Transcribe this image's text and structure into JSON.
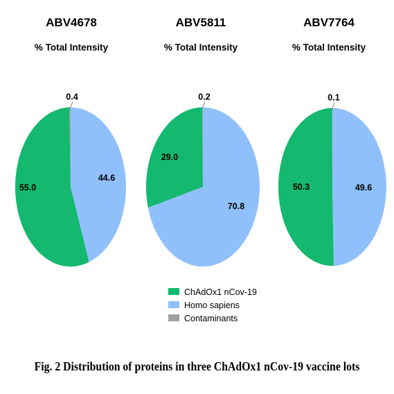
{
  "colors": {
    "chadox1": "#14b86e",
    "homo_sapiens": "#8fc0fb",
    "contaminants": "#a0a0a0"
  },
  "chart_data": [
    {
      "type": "pie",
      "title": "ABV4678",
      "subtitle": "% Total Intensity",
      "categories": [
        "ChAdOx1 nCov-19",
        "Homo sapiens",
        "Contaminants"
      ],
      "values": [
        55.0,
        44.6,
        0.4
      ],
      "data_labels": [
        "55.0",
        "44.6",
        "0.4"
      ]
    },
    {
      "type": "pie",
      "title": "ABV5811",
      "subtitle": "% Total Intensity",
      "categories": [
        "ChAdOx1 nCov-19",
        "Homo sapiens",
        "Contaminants"
      ],
      "values": [
        29.0,
        70.8,
        0.2
      ],
      "data_labels": [
        "29.0",
        "70.8",
        "0.2"
      ]
    },
    {
      "type": "pie",
      "title": "ABV7764",
      "subtitle": "% Total Intensity",
      "categories": [
        "ChAdOx1 nCov-19",
        "Homo sapiens",
        "Contaminants"
      ],
      "values": [
        50.3,
        49.6,
        0.1
      ],
      "data_labels": [
        "50.3",
        "49.6",
        "0.1"
      ]
    }
  ],
  "legend": {
    "items": [
      {
        "label": "ChAdOx1 nCov-19",
        "color": "#14b86e"
      },
      {
        "label": "Homo sapiens",
        "color": "#8fc0fb"
      },
      {
        "label": "Contaminants",
        "color": "#a0a0a0"
      }
    ]
  },
  "caption": "Fig. 2 Distribution of proteins in three ChAdOx1 nCov-19 vaccine lots"
}
